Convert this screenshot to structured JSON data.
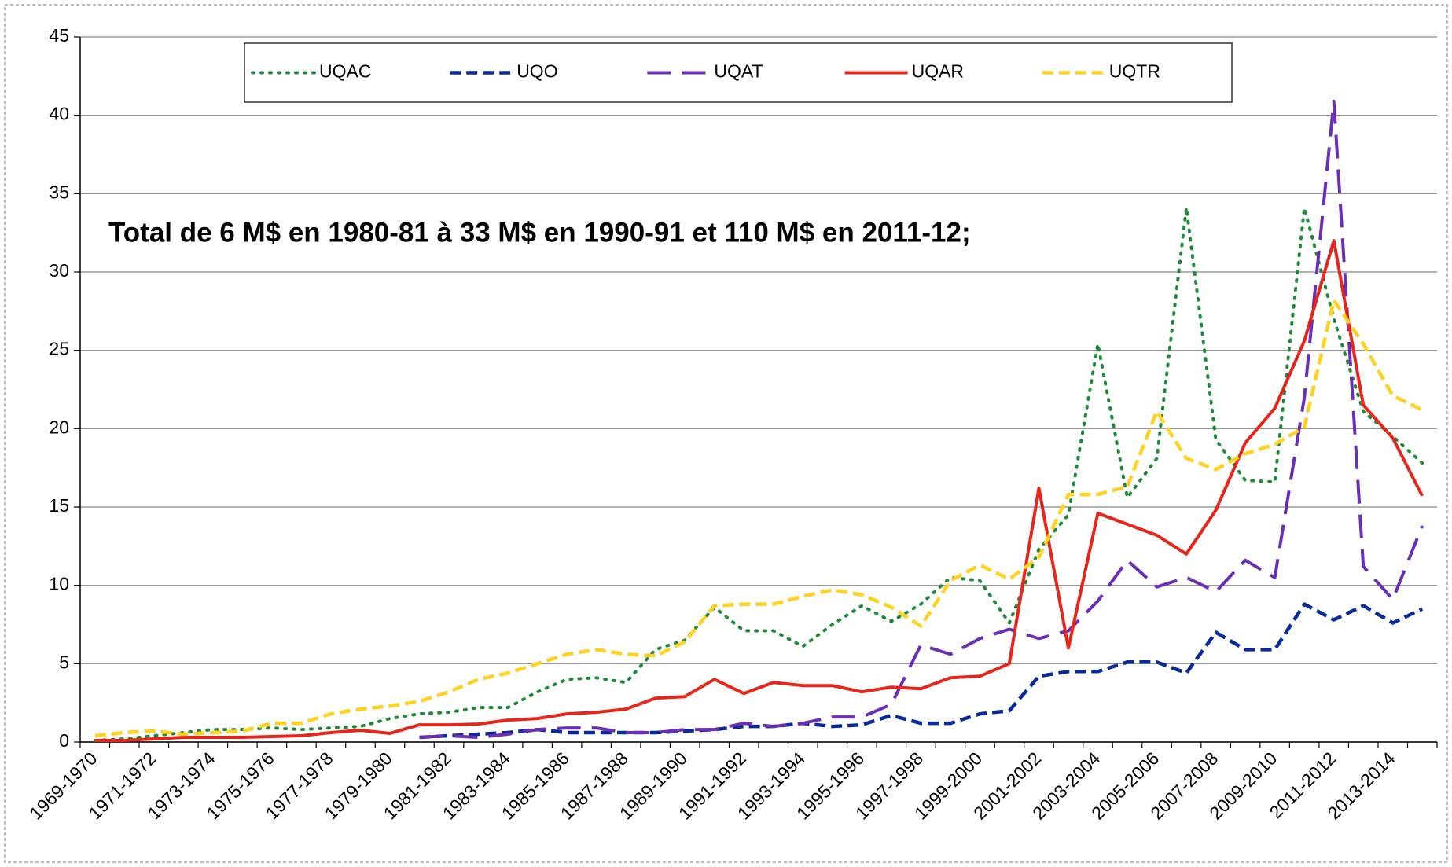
{
  "chart_data": {
    "type": "line",
    "annotation": "Total de 6 M$ en 1980-81 à 33 M$ en 1990-91 et 110 M$ en 2011-12;",
    "categories": [
      "1969-1970",
      null,
      "1971-1972",
      null,
      "1973-1974",
      null,
      "1975-1976",
      null,
      "1977-1978",
      null,
      "1979-1980",
      null,
      "1981-1982",
      null,
      "1983-1984",
      null,
      "1985-1986",
      null,
      "1987-1988",
      null,
      "1989-1990",
      null,
      "1991-1992",
      null,
      "1993-1994",
      null,
      "1995-1996",
      null,
      "1997-1998",
      null,
      "1999-2000",
      null,
      "2001-2002",
      null,
      "2003-2004",
      null,
      "2005-2006",
      null,
      "2007-2008",
      null,
      "2009-2010",
      null,
      "2011-2012",
      null,
      "2013-2014",
      null
    ],
    "ylim": [
      0,
      45
    ],
    "yticks": [
      0,
      5,
      10,
      15,
      20,
      25,
      30,
      35,
      40,
      45
    ],
    "grid": true,
    "legend": "top",
    "series": [
      {
        "name": "UQAC",
        "color": "#1f8a3a",
        "dash": "dotted",
        "values": [
          0.1,
          0.2,
          0.4,
          0.6,
          0.8,
          0.8,
          0.9,
          0.8,
          0.9,
          1.0,
          1.5,
          1.8,
          1.9,
          2.2,
          2.2,
          3.2,
          4.0,
          4.1,
          3.8,
          5.9,
          6.5,
          8.6,
          7.1,
          7.1,
          6.1,
          7.5,
          8.7,
          7.7,
          8.8,
          10.5,
          10.3,
          7.6,
          12.3,
          14.5,
          25.4,
          15.6,
          18.1,
          34.1,
          19.3,
          16.7,
          16.6,
          34.1,
          27.0,
          21.1,
          19.5,
          17.8
        ]
      },
      {
        "name": "UQO",
        "color": "#0a2a9a",
        "dash": "dashed",
        "values": [
          null,
          null,
          null,
          null,
          null,
          null,
          null,
          null,
          null,
          null,
          null,
          0.3,
          0.4,
          0.5,
          0.6,
          0.8,
          0.6,
          0.6,
          0.6,
          0.6,
          0.7,
          0.8,
          1.0,
          1.0,
          1.2,
          1.0,
          1.1,
          1.7,
          1.2,
          1.2,
          1.8,
          2.0,
          4.2,
          4.5,
          4.5,
          5.1,
          5.1,
          4.4,
          7.0,
          5.9,
          5.9,
          8.8,
          7.8,
          8.7,
          7.6,
          8.5
        ]
      },
      {
        "name": "UQAT",
        "color": "#6a2fb5",
        "dash": "long-dashed",
        "values": [
          null,
          null,
          null,
          null,
          null,
          null,
          null,
          null,
          null,
          null,
          null,
          0.3,
          0.4,
          0.3,
          0.5,
          0.8,
          0.9,
          0.9,
          0.6,
          0.6,
          0.8,
          0.8,
          1.2,
          1.0,
          1.2,
          1.6,
          1.6,
          2.4,
          6.2,
          5.6,
          6.6,
          7.2,
          6.6,
          7.1,
          9.0,
          11.6,
          9.9,
          10.5,
          9.6,
          11.6,
          10.5,
          22.0,
          40.9,
          11.2,
          9.1,
          13.8
        ]
      },
      {
        "name": "UQAR",
        "color": "#e8251a",
        "dash": "solid",
        "values": [
          0.1,
          0.1,
          0.2,
          0.3,
          0.3,
          0.3,
          0.35,
          0.4,
          0.6,
          0.75,
          0.55,
          1.1,
          1.1,
          1.15,
          1.4,
          1.5,
          1.8,
          1.9,
          2.1,
          2.8,
          2.9,
          4.0,
          3.1,
          3.8,
          3.6,
          3.6,
          3.2,
          3.5,
          3.4,
          4.1,
          4.2,
          5.0,
          16.2,
          6.0,
          14.6,
          13.9,
          13.2,
          12.0,
          14.8,
          19.1,
          21.3,
          25.6,
          32.0,
          21.5,
          19.4,
          15.7
        ]
      },
      {
        "name": "UQTR",
        "color": "#ffd21f",
        "dash": "dashed",
        "values": [
          0.4,
          0.6,
          0.7,
          0.5,
          0.6,
          0.7,
          1.2,
          1.2,
          1.8,
          2.1,
          2.3,
          2.6,
          3.2,
          4.0,
          4.4,
          5.0,
          5.6,
          5.9,
          5.6,
          5.5,
          6.4,
          8.7,
          8.8,
          8.8,
          9.3,
          9.7,
          9.4,
          8.6,
          7.4,
          10.3,
          11.3,
          10.4,
          11.8,
          15.8,
          15.8,
          16.3,
          21.1,
          18.1,
          17.4,
          18.4,
          19.0,
          20.1,
          28.2,
          25.4,
          22.1,
          21.2
        ]
      }
    ]
  }
}
